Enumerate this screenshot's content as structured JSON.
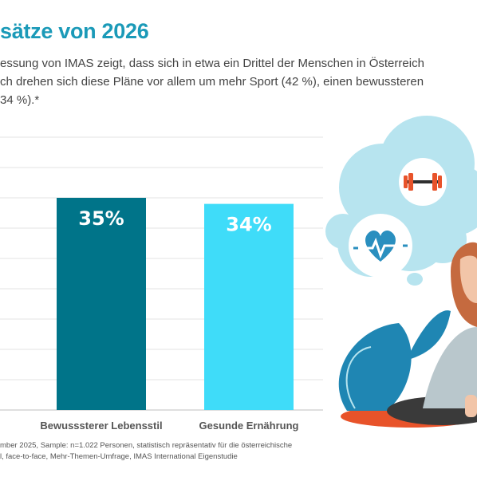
{
  "title": "sätze von 2026",
  "intro_lines": [
    "essung von IMAS zeigt, dass sich in etwa ein Drittel der Menschen in Österreich",
    "ch drehen sich diese Pläne vor allem um mehr Sport (42 %), einen bewussteren",
    "34 %).*"
  ],
  "chart_data": {
    "type": "bar",
    "categories": [
      "Bewusssterer Lebensstil",
      "Gesunde Ernährung"
    ],
    "values": [
      35,
      34
    ],
    "value_labels": [
      "35%",
      "34%"
    ],
    "colors": [
      "#007489",
      "#3fdcf9"
    ],
    "ylim": [
      0,
      45
    ],
    "grid": true
  },
  "footnote_lines": [
    "mber 2025, Sample: n=1.022 Personen, statistisch repräsentativ für die österreichische",
    "l, face-to-face, Mehr-Themen-Umfrage, IMAS International Eigenstudie"
  ],
  "illustration": {
    "icons": [
      "dumbbell-icon",
      "heart-pulse-icon"
    ],
    "colors": {
      "cloud": "#b7e4ef",
      "mat": "#e8532a",
      "leaves": "#1f86b3"
    }
  }
}
